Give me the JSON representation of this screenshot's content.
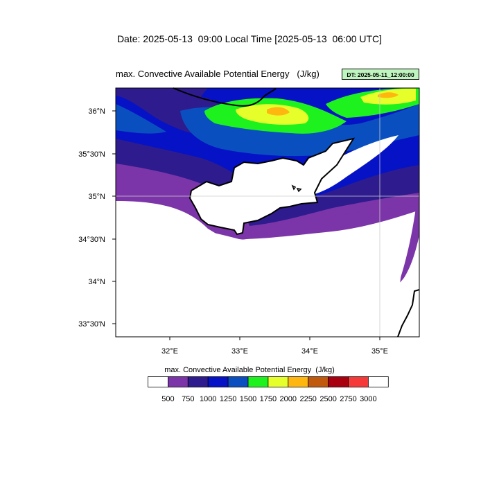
{
  "header": {
    "date_title": "Date: 2025-05-13  09:00 Local Time [2025-05-13  06:00 UTC]",
    "field_title": "max. Convective Available Potential Energy   (J/kg)",
    "dt_badge": "DT: 2025-05-11_12:00:00"
  },
  "map": {
    "lat_labels": [
      "36°N",
      "35°30'N",
      "35°N",
      "34°30'N",
      "34°N",
      "33°30'N"
    ],
    "lon_labels": [
      "32°E",
      "33°E",
      "34°E",
      "35°E"
    ],
    "colors": {
      "lt750": "#ffffff",
      "c750": "#7b35a8",
      "c1000": "#2e1b8e",
      "c1250": "#0612c6",
      "c1500": "#0a4fc0",
      "c1750": "#1ef21e",
      "c2000": "#e6ff2a",
      "c2250": "#ffb70f",
      "land": "#ffffff",
      "coast": "#000000"
    }
  },
  "legend": {
    "title": "max. Convective Available Potential Energy  (J/kg)",
    "labels": [
      "500",
      "750",
      "1000",
      "1250",
      "1500",
      "1750",
      "2000",
      "2250",
      "2500",
      "2750",
      "3000"
    ],
    "colors": [
      "#ffffff",
      "#7b35a8",
      "#2e1b8e",
      "#0612c6",
      "#0a4fc0",
      "#1ef21e",
      "#e6ff2a",
      "#ffb70f",
      "#c25a0d",
      "#a8000f",
      "#f63a3a",
      "#ffffff"
    ]
  }
}
